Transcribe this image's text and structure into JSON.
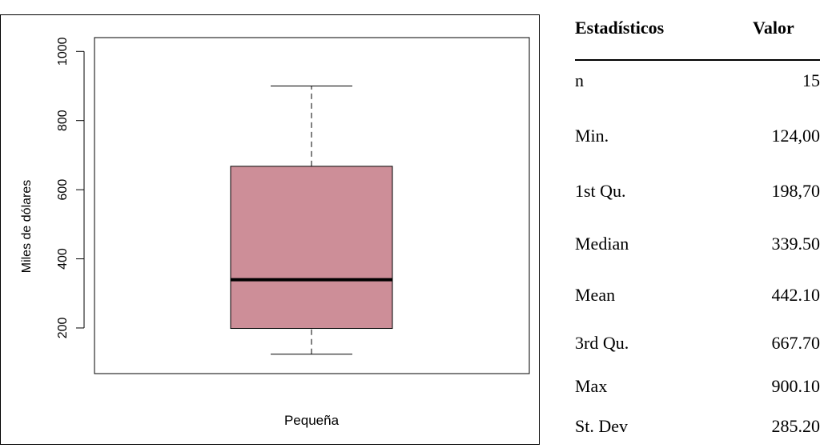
{
  "chart_data": {
    "type": "boxplot",
    "ylabel": "Miles de dólares",
    "categories": [
      "Pequeña"
    ],
    "yticks": [
      200,
      400,
      600,
      800,
      1000
    ],
    "ylim": [
      68,
      1040
    ],
    "box": {
      "min": 124.0,
      "q1": 198.7,
      "median": 339.5,
      "q3": 667.7,
      "max": 900.1
    },
    "box_color": "#cd8e98"
  },
  "table": {
    "headers": [
      "Estadísticos",
      "Valor"
    ],
    "rows": [
      {
        "label": "n",
        "value": "15"
      },
      {
        "label": "Min.",
        "value": "124,00"
      },
      {
        "label": "1st Qu.",
        "value": "198,70"
      },
      {
        "label": "Median",
        "value": "339.50"
      },
      {
        "label": "Mean",
        "value": "442.10"
      },
      {
        "label": "3rd Qu.",
        "value": "667.70"
      },
      {
        "label": "Max",
        "value": "900.10"
      },
      {
        "label": "St. Dev",
        "value": "285.20"
      }
    ]
  }
}
